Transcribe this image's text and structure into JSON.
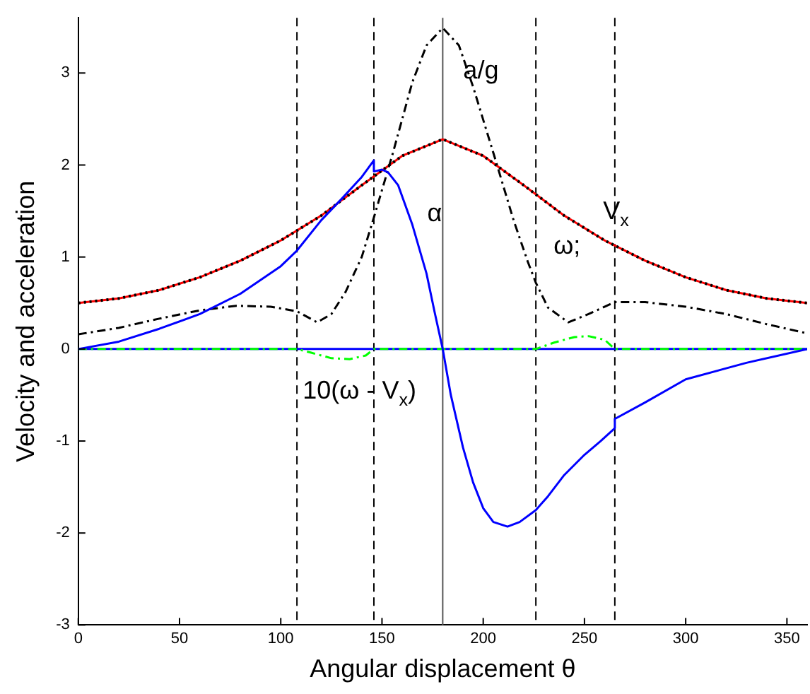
{
  "chart_data": {
    "type": "line",
    "xlabel": "Angular displacement θ",
    "ylabel": "Velocity and acceleration",
    "xlim": [
      0,
      360
    ],
    "ylim": [
      -3,
      3.6
    ],
    "xticks": [
      0,
      50,
      100,
      150,
      200,
      250,
      300,
      350
    ],
    "yticks": [
      -3,
      -2,
      -1,
      0,
      1,
      2,
      3
    ],
    "grid": false,
    "legend": false,
    "marker": "none",
    "series": [
      {
        "name": "ω;",
        "color": "#ff0000",
        "line_style": "solid",
        "x": [
          0,
          20,
          40,
          60,
          80,
          100,
          120,
          140,
          160,
          180,
          200,
          220,
          240,
          260,
          280,
          300,
          320,
          340,
          360
        ],
        "values": [
          0.5,
          0.55,
          0.64,
          0.78,
          0.96,
          1.18,
          1.45,
          1.78,
          2.1,
          2.28,
          2.1,
          1.78,
          1.45,
          1.18,
          0.96,
          0.78,
          0.64,
          0.55,
          0.5
        ]
      },
      {
        "name": "V$_{x}$",
        "color": "#000000",
        "line_style": "dotted",
        "x": [
          0,
          20,
          40,
          60,
          80,
          100,
          120,
          140,
          160,
          180,
          200,
          220,
          240,
          260,
          280,
          300,
          320,
          340,
          360
        ],
        "values": [
          0.5,
          0.55,
          0.64,
          0.78,
          0.96,
          1.18,
          1.45,
          1.78,
          2.1,
          2.28,
          2.1,
          1.78,
          1.45,
          1.18,
          0.96,
          0.78,
          0.64,
          0.55,
          0.5
        ]
      },
      {
        "name": "a/g",
        "color": "#000000",
        "line_style": "dashdot",
        "x": [
          0,
          20,
          40,
          60,
          78,
          95,
          108,
          118,
          125,
          132,
          140,
          146,
          155,
          165,
          172,
          180,
          188,
          195,
          206,
          215,
          222,
          226,
          232,
          242,
          252,
          265,
          280,
          300,
          320,
          340,
          360
        ],
        "values": [
          0.16,
          0.23,
          0.33,
          0.42,
          0.47,
          0.46,
          0.41,
          0.29,
          0.38,
          0.62,
          1.0,
          1.43,
          2.1,
          2.9,
          3.3,
          3.49,
          3.3,
          2.85,
          2.06,
          1.4,
          0.95,
          0.72,
          0.45,
          0.29,
          0.38,
          0.51,
          0.51,
          0.46,
          0.38,
          0.27,
          0.17
        ]
      },
      {
        "color": "#0000ff",
        "line_style": "solid",
        "x": [
          0,
          360
        ],
        "values": [
          0,
          0
        ]
      },
      {
        "name": "10(ω - V$_{x}$)",
        "color": "#00ff00",
        "line_style": "dashdot",
        "x": [
          0,
          108,
          115,
          125,
          134,
          142,
          146,
          226,
          235,
          245,
          252,
          260,
          265,
          360
        ],
        "values": [
          0,
          0,
          -0.04,
          -0.1,
          -0.11,
          -0.07,
          0,
          0,
          0.07,
          0.13,
          0.14,
          0.1,
          0,
          0
        ]
      },
      {
        "name": "α",
        "color": "#0000ff",
        "line_style": "solid",
        "x": [
          0,
          20,
          40,
          60,
          80,
          100,
          108,
          120,
          130,
          140,
          146,
          146,
          150,
          153,
          158,
          165,
          172,
          176,
          180,
          184,
          190,
          195,
          200,
          205,
          212,
          218,
          226,
          232,
          240,
          250,
          258,
          265,
          265,
          280,
          300,
          330,
          360
        ],
        "values": [
          0,
          0.08,
          0.22,
          0.38,
          0.6,
          0.9,
          1.07,
          1.4,
          1.63,
          1.87,
          2.05,
          1.93,
          1.95,
          1.92,
          1.78,
          1.35,
          0.82,
          0.4,
          0,
          -0.5,
          -1.07,
          -1.45,
          -1.73,
          -1.88,
          -1.93,
          -1.88,
          -1.75,
          -1.6,
          -1.37,
          -1.15,
          -1.0,
          -0.86,
          -0.76,
          -0.58,
          -0.33,
          -0.15,
          0
        ]
      }
    ],
    "ref_lines": [
      {
        "axis": "x",
        "value": 108,
        "color": "#000000",
        "line_style": "dashed"
      },
      {
        "axis": "x",
        "value": 146,
        "color": "#000000",
        "line_style": "dashed"
      },
      {
        "axis": "x",
        "value": 180,
        "color": "#555555",
        "line_style": "solid"
      },
      {
        "axis": "x",
        "value": 226,
        "color": "#000000",
        "line_style": "dashed"
      },
      {
        "axis": "x",
        "value": 265,
        "color": "#000000",
        "line_style": "dashed"
      }
    ]
  }
}
